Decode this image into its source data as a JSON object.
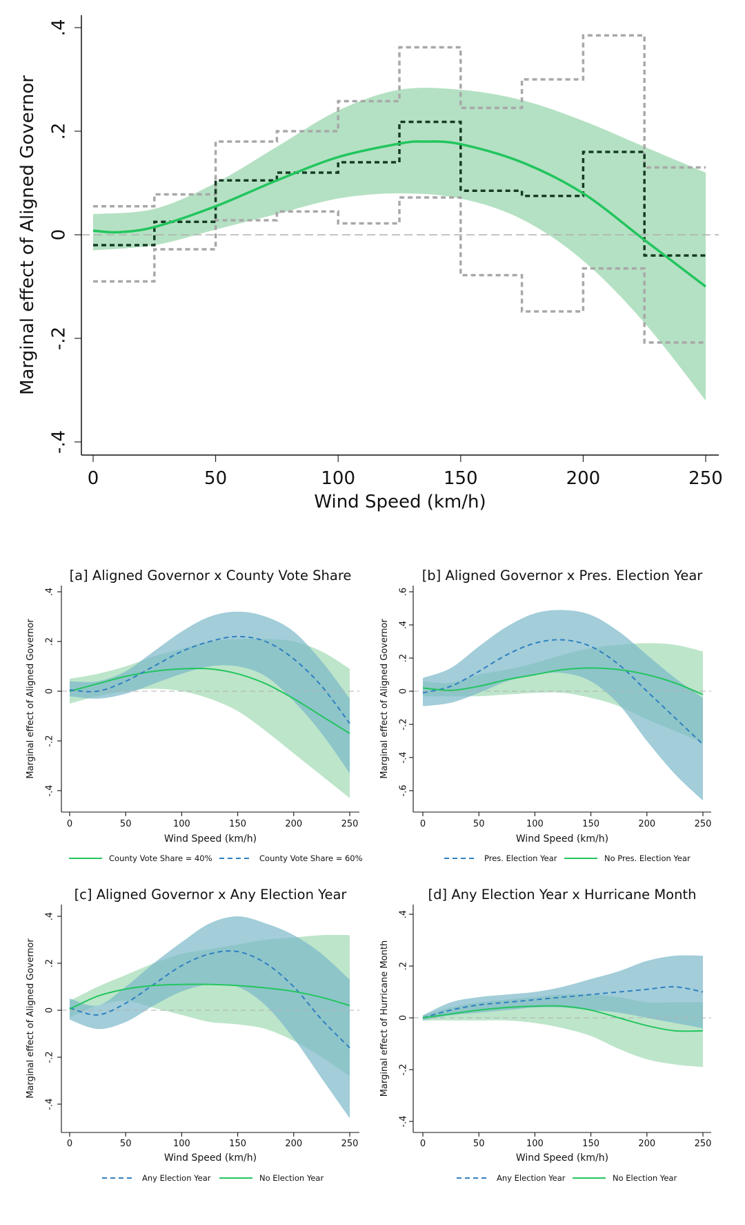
{
  "colors": {
    "green_line": "#22c55e",
    "green_band": "#a7dcb8",
    "blue_line": "#2f7fc1",
    "blue_band": "#7ab8c9",
    "dark_dashed": "#163a22",
    "gray_dashed": "#a8a8a8",
    "reference_line": "#b0b0b0",
    "axis": "#111111"
  },
  "chart_data": [
    {
      "id": "main",
      "type": "line",
      "title": "",
      "xlabel": "Wind Speed (km/h)",
      "ylabel": "Marginal effect of Aligned Governor",
      "xlim": [
        0,
        250
      ],
      "ylim": [
        -0.4,
        0.4
      ],
      "xticks": [
        0,
        50,
        100,
        150,
        200,
        250
      ],
      "xtick_labels": [
        "0",
        "50",
        "100",
        "150",
        "200",
        "250"
      ],
      "yticks": [
        -0.4,
        -0.2,
        0,
        0.2,
        0.4
      ],
      "ytick_labels": [
        "-.4",
        "-.2",
        "0",
        ".2",
        ".4"
      ],
      "reference_line": 0,
      "grid": false,
      "band": {
        "x": [
          0,
          25,
          50,
          75,
          100,
          125,
          150,
          175,
          200,
          225,
          250
        ],
        "lower": [
          -0.03,
          -0.02,
          0.01,
          0.04,
          0.07,
          0.08,
          0.07,
          0.03,
          -0.05,
          -0.17,
          -0.32
        ],
        "upper": [
          0.04,
          0.05,
          0.1,
          0.17,
          0.24,
          0.28,
          0.28,
          0.26,
          0.22,
          0.17,
          0.12
        ]
      },
      "fit_line": {
        "x": [
          0,
          10,
          25,
          50,
          75,
          100,
          125,
          135,
          150,
          175,
          200,
          225,
          250
        ],
        "y": [
          0.008,
          0.005,
          0.015,
          0.055,
          0.105,
          0.15,
          0.176,
          0.18,
          0.175,
          0.14,
          0.08,
          -0.01,
          -0.1
        ]
      },
      "binned_estimates": {
        "edges": [
          0,
          25,
          50,
          75,
          100,
          125,
          150,
          175,
          200,
          225,
          250
        ],
        "point": [
          -0.02,
          0.025,
          0.105,
          0.12,
          0.14,
          0.218,
          0.085,
          0.075,
          0.16,
          -0.04
        ],
        "upper": [
          0.055,
          0.078,
          0.18,
          0.2,
          0.258,
          0.362,
          0.245,
          0.3,
          0.385,
          0.13
        ],
        "lower": [
          -0.09,
          -0.028,
          0.028,
          0.045,
          0.022,
          0.072,
          -0.078,
          -0.148,
          -0.065,
          -0.208
        ]
      }
    },
    {
      "id": "a",
      "type": "line",
      "title": "[a] Aligned Governor x County Vote Share",
      "xlabel": "Wind Speed (km/h)",
      "ylabel": "Marginal effect of Aligned Governor",
      "xlim": [
        0,
        250
      ],
      "ylim": [
        -0.4,
        0.4
      ],
      "xticks": [
        0,
        50,
        100,
        150,
        200,
        250
      ],
      "xtick_labels": [
        "0",
        "50",
        "100",
        "150",
        "200",
        "250"
      ],
      "yticks": [
        -0.4,
        -0.2,
        0,
        0.2,
        0.4
      ],
      "ytick_labels": [
        "-.4",
        "-.2",
        "0",
        ".2",
        ".4"
      ],
      "reference_line": 0,
      "x": [
        0,
        25,
        50,
        75,
        100,
        125,
        150,
        175,
        200,
        225,
        250
      ],
      "series": [
        {
          "name": "County Vote Share = 40%",
          "style": "solid",
          "color": "green",
          "values": [
            0.0,
            0.03,
            0.06,
            0.08,
            0.09,
            0.09,
            0.07,
            0.03,
            -0.03,
            -0.1,
            -0.17
          ],
          "lower": [
            -0.05,
            -0.02,
            0.0,
            0.01,
            0.0,
            -0.03,
            -0.08,
            -0.16,
            -0.25,
            -0.34,
            -0.43
          ],
          "upper": [
            0.05,
            0.07,
            0.1,
            0.14,
            0.17,
            0.2,
            0.21,
            0.21,
            0.2,
            0.16,
            0.09
          ]
        },
        {
          "name": "County Vote Share = 60%",
          "style": "dashed",
          "color": "blue",
          "values": [
            0.005,
            0.0,
            0.04,
            0.1,
            0.16,
            0.2,
            0.22,
            0.2,
            0.13,
            0.02,
            -0.13
          ],
          "lower": [
            -0.02,
            -0.03,
            -0.01,
            0.03,
            0.07,
            0.1,
            0.1,
            0.06,
            -0.04,
            -0.17,
            -0.33
          ],
          "upper": [
            0.04,
            0.04,
            0.08,
            0.16,
            0.24,
            0.3,
            0.32,
            0.3,
            0.24,
            0.12,
            -0.03
          ]
        }
      ],
      "legend": "bottom"
    },
    {
      "id": "b",
      "type": "line",
      "title": "[b] Aligned Governor x Pres. Election Year",
      "xlabel": "Wind Speed (km/h)",
      "ylabel": "Marginal effect of Aligned Governor",
      "xlim": [
        0,
        250
      ],
      "ylim": [
        -0.6,
        0.6
      ],
      "xticks": [
        0,
        50,
        100,
        150,
        200,
        250
      ],
      "xtick_labels": [
        "0",
        "50",
        "100",
        "150",
        "200",
        "250"
      ],
      "yticks": [
        -0.6,
        -0.4,
        -0.2,
        0,
        0.2,
        0.4,
        0.6
      ],
      "ytick_labels": [
        "-.6",
        "-.4",
        "-.2",
        "0",
        ".2",
        ".4",
        ".6"
      ],
      "reference_line": 0,
      "x": [
        0,
        25,
        50,
        75,
        100,
        125,
        150,
        175,
        200,
        225,
        250
      ],
      "series": [
        {
          "name": "Pres. Election Year",
          "style": "dashed",
          "color": "blue",
          "values": [
            -0.01,
            0.03,
            0.12,
            0.22,
            0.29,
            0.31,
            0.27,
            0.16,
            0.0,
            -0.16,
            -0.32
          ],
          "lower": [
            -0.09,
            -0.07,
            -0.01,
            0.06,
            0.1,
            0.11,
            0.06,
            -0.08,
            -0.3,
            -0.5,
            -0.66
          ],
          "upper": [
            0.08,
            0.14,
            0.27,
            0.39,
            0.47,
            0.49,
            0.46,
            0.36,
            0.22,
            0.08,
            -0.04
          ]
        },
        {
          "name": "No Pres. Election Year",
          "style": "solid",
          "color": "green",
          "values": [
            0.02,
            0.005,
            0.03,
            0.07,
            0.1,
            0.13,
            0.14,
            0.13,
            0.1,
            0.05,
            -0.02
          ],
          "lower": [
            -0.03,
            -0.03,
            -0.03,
            -0.02,
            -0.01,
            -0.01,
            -0.04,
            -0.09,
            -0.17,
            -0.24,
            -0.31
          ],
          "upper": [
            0.06,
            0.05,
            0.1,
            0.13,
            0.17,
            0.22,
            0.26,
            0.28,
            0.29,
            0.28,
            0.24
          ]
        }
      ],
      "legend": "bottom"
    },
    {
      "id": "c",
      "type": "line",
      "title": "[c] Aligned Governor x Any Election Year",
      "xlabel": "Wind Speed (km/h)",
      "ylabel": "Marginal effect of Aligned Governor",
      "xlim": [
        0,
        250
      ],
      "ylim": [
        -0.4,
        0.4
      ],
      "xticks": [
        0,
        50,
        100,
        150,
        200,
        250
      ],
      "xtick_labels": [
        "0",
        "50",
        "100",
        "150",
        "200",
        "250"
      ],
      "yticks": [
        -0.4,
        -0.2,
        0,
        0.2,
        0.4
      ],
      "ytick_labels": [
        "-.4",
        "-.2",
        "0",
        ".2",
        ".4"
      ],
      "reference_line": 0,
      "x": [
        0,
        25,
        50,
        75,
        100,
        125,
        150,
        175,
        200,
        225,
        250
      ],
      "series": [
        {
          "name": "Any Election Year",
          "style": "dashed",
          "color": "blue",
          "values": [
            0.01,
            -0.02,
            0.03,
            0.11,
            0.19,
            0.24,
            0.25,
            0.2,
            0.1,
            -0.04,
            -0.16
          ],
          "lower": [
            -0.04,
            -0.08,
            -0.05,
            0.02,
            0.08,
            0.11,
            0.1,
            0.02,
            -0.12,
            -0.29,
            -0.46
          ],
          "upper": [
            0.05,
            0.02,
            0.1,
            0.2,
            0.29,
            0.37,
            0.4,
            0.37,
            0.32,
            0.24,
            0.13
          ]
        },
        {
          "name": "No Election Year",
          "style": "solid",
          "color": "green",
          "values": [
            0.005,
            0.06,
            0.09,
            0.105,
            0.11,
            0.11,
            0.105,
            0.095,
            0.08,
            0.055,
            0.02
          ],
          "lower": [
            -0.03,
            0.02,
            0.04,
            0.01,
            -0.02,
            -0.05,
            -0.06,
            -0.08,
            -0.13,
            -0.2,
            -0.28
          ],
          "upper": [
            0.04,
            0.1,
            0.15,
            0.2,
            0.24,
            0.26,
            0.28,
            0.3,
            0.31,
            0.32,
            0.32
          ]
        }
      ],
      "legend": "bottom"
    },
    {
      "id": "d",
      "type": "line",
      "title": "[d] Any Election Year x Hurricane Month",
      "xlabel": "Wind Speed (km/h)",
      "ylabel": "Marginal effect of Hurricane Month",
      "xlim": [
        0,
        250
      ],
      "ylim": [
        -0.4,
        0.4
      ],
      "xticks": [
        0,
        50,
        100,
        150,
        200,
        250
      ],
      "xtick_labels": [
        "0",
        "50",
        "100",
        "150",
        "200",
        "250"
      ],
      "yticks": [
        -0.4,
        -0.2,
        0,
        0.2,
        0.4
      ],
      "ytick_labels": [
        "-.4",
        "-.2",
        "0",
        ".2",
        ".4"
      ],
      "reference_line": 0,
      "x": [
        0,
        25,
        50,
        75,
        100,
        125,
        150,
        175,
        200,
        225,
        250
      ],
      "series": [
        {
          "name": "Any Election Year",
          "style": "dashed",
          "color": "blue",
          "values": [
            0.0,
            0.03,
            0.05,
            0.06,
            0.07,
            0.08,
            0.09,
            0.1,
            0.11,
            0.12,
            0.1
          ],
          "lower": [
            -0.01,
            0.01,
            0.02,
            0.03,
            0.04,
            0.04,
            0.03,
            0.02,
            0.0,
            -0.02,
            -0.04
          ],
          "upper": [
            0.01,
            0.06,
            0.08,
            0.09,
            0.1,
            0.12,
            0.15,
            0.18,
            0.22,
            0.24,
            0.24
          ]
        },
        {
          "name": "No Election Year",
          "style": "solid",
          "color": "green",
          "values": [
            0.0,
            0.015,
            0.03,
            0.04,
            0.045,
            0.045,
            0.03,
            0.0,
            -0.03,
            -0.05,
            -0.05
          ],
          "lower": [
            -0.01,
            -0.01,
            -0.01,
            -0.01,
            -0.02,
            -0.04,
            -0.07,
            -0.12,
            -0.16,
            -0.18,
            -0.19
          ],
          "upper": [
            0.01,
            0.04,
            0.06,
            0.07,
            0.08,
            0.09,
            0.09,
            0.08,
            0.06,
            0.06,
            0.06
          ]
        }
      ],
      "legend": "bottom"
    }
  ]
}
